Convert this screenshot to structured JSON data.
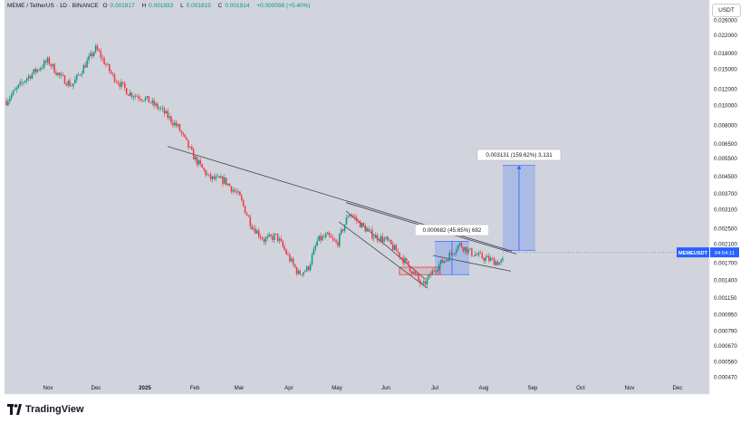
{
  "header": {
    "symbol": "MEME / TetherUS · 1D · BINANCE",
    "open_label": "O",
    "open": "0.001817",
    "high_label": "H",
    "high": "0.001933",
    "low_label": "L",
    "low": "0.001815",
    "close_label": "C",
    "close": "0.001914",
    "change": "+0.000098 (+5.40%)"
  },
  "currency_button": "USDT",
  "brand": {
    "name": "TradingView"
  },
  "price_tag": {
    "symbol": "MEMEUSDT",
    "countdown": "04:54:11",
    "color": "#2962ff"
  },
  "colors": {
    "up": "#089981",
    "down": "#f23645",
    "trendline": "#434651",
    "measure_fill": "#2962ff"
  },
  "chart_data": {
    "type": "candlestick",
    "y_scale": "log",
    "ylim": [
      0.00045,
      0.0275
    ],
    "y_ticks": [
      "0.026000",
      "0.022000",
      "0.018000",
      "0.015000",
      "0.012000",
      "0.010000",
      "0.008000",
      "0.006500",
      "0.005500",
      "0.004500",
      "0.003700",
      "0.003100",
      "0.002500",
      "0.002100",
      "0.001700",
      "0.001400",
      "0.001150",
      "0.000950",
      "0.000790",
      "0.000670",
      "0.000560",
      "0.000470"
    ],
    "x_ticks": [
      "Nov",
      "Dec",
      "2025",
      "Feb",
      "Mar",
      "Apr",
      "May",
      "Jun",
      "Jul",
      "Aug",
      "Sep",
      "Oct",
      "Nov",
      "Dec"
    ],
    "series": [
      {
        "name": "MEMEUSDT",
        "path": [
          [
            "Oct",
            0.0105
          ],
          [
            "Oct",
            0.0135
          ],
          [
            "Nov",
            0.0165
          ],
          [
            "Nov",
            0.0138
          ],
          [
            "Nov",
            0.0125
          ],
          [
            "Nov",
            0.0155
          ],
          [
            "Dec",
            0.019
          ],
          [
            "Dec",
            0.014
          ],
          [
            "Dec",
            0.0115
          ],
          [
            "2025",
            0.0108
          ],
          [
            "2025",
            0.0095
          ],
          [
            "2025",
            0.0078
          ],
          [
            "Feb",
            0.0055
          ],
          [
            "Feb",
            0.0044
          ],
          [
            "Feb",
            0.0043
          ],
          [
            "Mar",
            0.0036
          ],
          [
            "Mar",
            0.0026
          ],
          [
            "Mar",
            0.0022
          ],
          [
            "Mar",
            0.0023
          ],
          [
            "Apr",
            0.0018
          ],
          [
            "Apr",
            0.0015
          ],
          [
            "Apr",
            0.0016
          ],
          [
            "Apr",
            0.0022
          ],
          [
            "Apr",
            0.0023
          ],
          [
            "May",
            0.0021
          ],
          [
            "May",
            0.003
          ],
          [
            "May",
            0.0026
          ],
          [
            "May",
            0.0023
          ],
          [
            "Jun",
            0.0022
          ],
          [
            "Jun",
            0.0019
          ],
          [
            "Jun",
            0.0016
          ],
          [
            "Jun",
            0.0013
          ],
          [
            "Jul",
            0.0016
          ],
          [
            "Jul",
            0.0018
          ],
          [
            "Jul",
            0.0021
          ],
          [
            "Jul",
            0.0019
          ],
          [
            "Aug",
            0.0018
          ],
          [
            "Aug",
            0.0017
          ],
          [
            "Aug",
            0.0019
          ]
        ]
      }
    ],
    "last_price": "0.001914",
    "annotations": {
      "small_measure": {
        "text": "0.000682 (45.65%) 682",
        "from": 0.00149,
        "to": 0.00217
      },
      "large_measure": {
        "text": "0.003131 (159.62%) 3,131",
        "from": 0.00196,
        "to": 0.00509
      }
    },
    "trendlines": [
      {
        "from": [
          "Jan",
          0.0063
        ],
        "to": [
          "Aug",
          0.00194
        ]
      },
      {
        "from": [
          "May",
          0.00335
        ],
        "to": [
          "Aug",
          0.00188
        ]
      },
      {
        "from": [
          "Jul",
          0.00185
        ],
        "to": [
          "Aug",
          0.00155
        ]
      },
      {
        "from": [
          "May",
          0.0027
        ],
        "to": [
          "Jun",
          0.00128
        ]
      },
      {
        "from": [
          "May",
          0.00305
        ],
        "to": [
          "Jun",
          0.00142
        ]
      }
    ],
    "grid": false,
    "legend": "none"
  }
}
